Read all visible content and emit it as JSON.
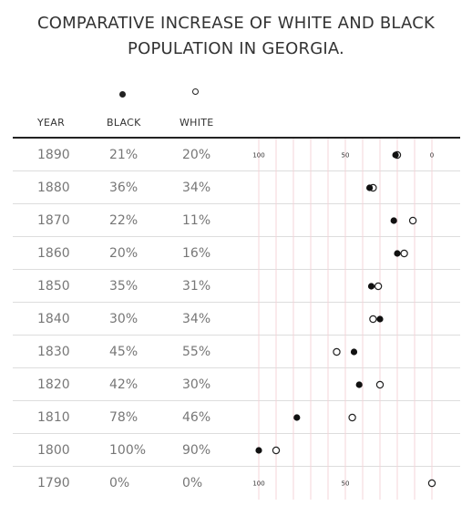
{
  "title_line1": "COMPARATIVE INCREASE OF WHITE AND BLACK",
  "title_line2": "POPULATION IN GEORGIA.",
  "columns": {
    "year": "YEAR",
    "black": "BLACK",
    "white": "WHITE"
  },
  "colors": {
    "black_marker": "#111111",
    "white_marker_stroke": "#222222",
    "gridline": "#f4d4d9",
    "row_rule": "#dddddd"
  },
  "chart_data": {
    "type": "table",
    "axis": {
      "direction": "reversed",
      "range": [
        100,
        0
      ],
      "ticks": [
        100,
        50,
        0
      ],
      "gridlines_every": 10
    },
    "rows": [
      {
        "year": "1890",
        "black": "21%",
        "white": "20%",
        "black_value": 21,
        "white_value": 20,
        "ticks": [
          "100",
          "50",
          "0"
        ]
      },
      {
        "year": "1880",
        "black": "36%",
        "white": "34%",
        "black_value": 36,
        "white_value": 34
      },
      {
        "year": "1870",
        "black": "22%",
        "white": "11%",
        "black_value": 22,
        "white_value": 11
      },
      {
        "year": "1860",
        "black": "20%",
        "white": "16%",
        "black_value": 20,
        "white_value": 16
      },
      {
        "year": "1850",
        "black": "35%",
        "white": "31%",
        "black_value": 35,
        "white_value": 31
      },
      {
        "year": "1840",
        "black": "30%",
        "white": "34%",
        "black_value": 30,
        "white_value": 34
      },
      {
        "year": "1830",
        "black": "45%",
        "white": "55%",
        "black_value": 45,
        "white_value": 55
      },
      {
        "year": "1820",
        "black": "42%",
        "white": "30%",
        "black_value": 42,
        "white_value": 30
      },
      {
        "year": "1810",
        "black": "78%",
        "white": "46%",
        "black_value": 78,
        "white_value": 46
      },
      {
        "year": "1800",
        "black": "100%",
        "white": "90%",
        "black_value": 100,
        "white_value": 90
      },
      {
        "year": "1790",
        "black": "0%",
        "white": "0%",
        "black_value": null,
        "white_value": 0,
        "ticks": [
          "100",
          "50"
        ]
      }
    ]
  }
}
